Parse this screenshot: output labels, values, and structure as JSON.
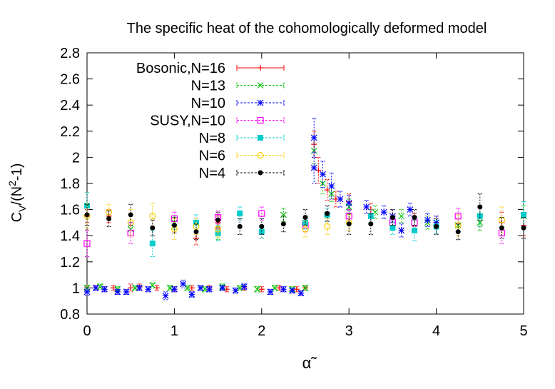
{
  "chart_data": {
    "type": "scatter",
    "title": "The specific heat of the cohomologically deformed model",
    "xlabel": "α̃",
    "ylabel_main": "C",
    "ylabel_sub": "V",
    "ylabel_rest": "/(N",
    "ylabel_sup": "2",
    "ylabel_end": "-1)",
    "xlim": [
      0,
      5
    ],
    "ylim": [
      0.8,
      2.8
    ],
    "xticks": [
      "0",
      "1",
      "2",
      "3",
      "4",
      "5"
    ],
    "yticks": [
      "0.8",
      "1",
      "1.2",
      "1.4",
      "1.6",
      "1.8",
      "2",
      "2.2",
      "2.4",
      "2.6",
      "2.8"
    ],
    "legend_position": "top-left",
    "series": [
      {
        "name": "Bosonic,N=16",
        "color": "#ff0000",
        "marker": "plus",
        "points": [
          [
            0,
            1.0,
            0.02
          ],
          [
            0.1,
            1.0,
            0.02
          ],
          [
            0.2,
            0.99,
            0.02
          ],
          [
            0.3,
            1.0,
            0.02
          ],
          [
            0.5,
            1.0,
            0.03
          ],
          [
            0.6,
            1.01,
            0.02
          ],
          [
            0.8,
            1.0,
            0.02
          ],
          [
            1.0,
            0.99,
            0.02
          ],
          [
            1.2,
            1.0,
            0.02
          ],
          [
            1.4,
            1.0,
            0.02
          ],
          [
            1.6,
            0.99,
            0.02
          ],
          [
            1.8,
            1.0,
            0.02
          ],
          [
            2.0,
            0.99,
            0.02
          ],
          [
            2.2,
            1.0,
            0.02
          ],
          [
            2.4,
            0.99,
            0.02
          ],
          [
            2.5,
            1.0,
            0.02
          ],
          [
            0,
            1.55,
            0.05
          ],
          [
            0.25,
            1.55,
            0.05
          ],
          [
            1.25,
            1.38,
            0.05
          ],
          [
            1.5,
            1.5,
            0.05
          ],
          [
            2.0,
            1.43,
            0.05
          ],
          [
            2.6,
            2.1,
            0.1
          ],
          [
            2.65,
            1.9,
            0.1
          ],
          [
            2.75,
            1.75,
            0.08
          ],
          [
            2.85,
            1.68,
            0.06
          ],
          [
            3.0,
            1.66,
            0.06
          ],
          [
            3.25,
            1.6,
            0.05
          ],
          [
            3.5,
            1.55,
            0.05
          ],
          [
            3.75,
            1.52,
            0.05
          ],
          [
            4.0,
            1.5,
            0.05
          ],
          [
            4.5,
            1.55,
            0.08
          ],
          [
            4.75,
            1.5,
            0.08
          ],
          [
            5.0,
            1.48,
            0.08
          ]
        ]
      },
      {
        "name": "N=13",
        "color": "#00c000",
        "marker": "cross",
        "points": [
          [
            0,
            1.0,
            0.02
          ],
          [
            0.15,
            1.01,
            0.02
          ],
          [
            0.35,
            0.99,
            0.02
          ],
          [
            0.55,
            1.0,
            0.02
          ],
          [
            0.75,
            1.02,
            0.02
          ],
          [
            0.95,
            1.0,
            0.02
          ],
          [
            1.15,
            1.0,
            0.02
          ],
          [
            1.35,
            0.99,
            0.02
          ],
          [
            1.55,
            1.01,
            0.02
          ],
          [
            1.75,
            1.0,
            0.02
          ],
          [
            1.95,
            0.99,
            0.02
          ],
          [
            2.15,
            1.0,
            0.02
          ],
          [
            2.35,
            0.99,
            0.02
          ],
          [
            2.5,
            1.0,
            0.02
          ],
          [
            0.5,
            1.45,
            0.05
          ],
          [
            1.0,
            1.5,
            0.05
          ],
          [
            1.5,
            1.42,
            0.05
          ],
          [
            2.25,
            1.56,
            0.05
          ],
          [
            2.6,
            2.05,
            0.1
          ],
          [
            2.7,
            1.8,
            0.08
          ],
          [
            2.8,
            1.72,
            0.06
          ],
          [
            3.0,
            1.62,
            0.06
          ],
          [
            3.3,
            1.58,
            0.05
          ],
          [
            3.6,
            1.55,
            0.05
          ],
          [
            3.9,
            1.5,
            0.05
          ],
          [
            4.25,
            1.48,
            0.05
          ],
          [
            4.5,
            1.5,
            0.06
          ],
          [
            5.0,
            1.55,
            0.08
          ]
        ]
      },
      {
        "name": "N=10",
        "color": "#0000ff",
        "marker": "star",
        "points": [
          [
            0,
            0.97,
            0.03
          ],
          [
            0.1,
            1.0,
            0.02
          ],
          [
            0.2,
            0.99,
            0.02
          ],
          [
            0.35,
            0.97,
            0.02
          ],
          [
            0.45,
            0.97,
            0.02
          ],
          [
            0.6,
            1.0,
            0.02
          ],
          [
            0.7,
            0.99,
            0.02
          ],
          [
            0.9,
            0.94,
            0.03
          ],
          [
            1.0,
            0.99,
            0.02
          ],
          [
            1.1,
            1.03,
            0.03
          ],
          [
            1.2,
            0.95,
            0.02
          ],
          [
            1.3,
            1.0,
            0.02
          ],
          [
            1.4,
            0.99,
            0.02
          ],
          [
            1.55,
            1.0,
            0.02
          ],
          [
            1.7,
            0.98,
            0.02
          ],
          [
            1.8,
            1.01,
            0.02
          ],
          [
            2.1,
            0.97,
            0.02
          ],
          [
            2.25,
            0.99,
            0.02
          ],
          [
            2.35,
            0.98,
            0.02
          ],
          [
            2.45,
            0.96,
            0.02
          ],
          [
            2.6,
            1.92,
            0.12
          ],
          [
            2.6,
            2.15,
            0.15
          ],
          [
            2.7,
            1.87,
            0.1
          ],
          [
            2.8,
            1.78,
            0.1
          ],
          [
            2.9,
            1.68,
            0.06
          ],
          [
            3.0,
            1.65,
            0.06
          ],
          [
            3.2,
            1.62,
            0.05
          ],
          [
            3.4,
            1.58,
            0.05
          ],
          [
            3.5,
            1.55,
            0.05
          ],
          [
            3.6,
            1.44,
            0.05
          ],
          [
            3.7,
            1.6,
            0.05
          ],
          [
            3.9,
            1.52,
            0.05
          ],
          [
            4.0,
            1.5,
            0.05
          ]
        ]
      },
      {
        "name": "SUSY,N=10",
        "color": "#ff00ff",
        "marker": "square",
        "points": [
          [
            0,
            1.34,
            0.1
          ],
          [
            0.5,
            1.42,
            0.08
          ],
          [
            1.0,
            1.53,
            0.05
          ],
          [
            1.5,
            1.54,
            0.05
          ],
          [
            2.0,
            1.57,
            0.05
          ],
          [
            2.5,
            1.48,
            0.05
          ],
          [
            3.0,
            1.55,
            0.05
          ],
          [
            3.5,
            1.5,
            0.05
          ],
          [
            3.75,
            1.5,
            0.05
          ],
          [
            4.25,
            1.55,
            0.06
          ],
          [
            4.75,
            1.42,
            0.08
          ]
        ]
      },
      {
        "name": "N=8",
        "color": "#00cccc",
        "marker": "filled-square",
        "points": [
          [
            0,
            1.63,
            0.1
          ],
          [
            0.75,
            1.34,
            0.1
          ],
          [
            1.25,
            1.5,
            0.06
          ],
          [
            1.5,
            1.42,
            0.06
          ],
          [
            1.75,
            1.57,
            0.05
          ],
          [
            2.0,
            1.43,
            0.05
          ],
          [
            2.5,
            1.5,
            0.05
          ],
          [
            2.75,
            1.56,
            0.05
          ],
          [
            3.25,
            1.55,
            0.05
          ],
          [
            3.5,
            1.46,
            0.05
          ],
          [
            3.75,
            1.44,
            0.08
          ],
          [
            4.0,
            1.47,
            0.05
          ],
          [
            4.5,
            1.55,
            0.08
          ],
          [
            5.0,
            1.56,
            0.1
          ]
        ]
      },
      {
        "name": "N=6",
        "color": "#ffcc00",
        "marker": "circle",
        "points": [
          [
            0,
            1.55,
            0.1
          ],
          [
            0.25,
            1.58,
            0.06
          ],
          [
            0.5,
            1.5,
            0.1
          ],
          [
            0.75,
            1.55,
            0.1
          ],
          [
            1.0,
            1.45,
            0.08
          ],
          [
            1.25,
            1.47,
            0.06
          ],
          [
            1.5,
            1.45,
            0.06
          ],
          [
            2.5,
            1.45,
            0.06
          ],
          [
            2.75,
            1.47,
            0.06
          ],
          [
            3.0,
            1.5,
            0.06
          ],
          [
            4.25,
            1.48,
            0.08
          ],
          [
            4.75,
            1.52,
            0.1
          ]
        ]
      },
      {
        "name": "N=4",
        "color": "#000000",
        "marker": "dot",
        "points": [
          [
            0,
            1.56,
            0.08
          ],
          [
            0.25,
            1.53,
            0.06
          ],
          [
            0.5,
            1.56,
            0.08
          ],
          [
            0.75,
            1.46,
            0.06
          ],
          [
            1.0,
            1.48,
            0.06
          ],
          [
            1.25,
            1.43,
            0.06
          ],
          [
            1.5,
            1.52,
            0.06
          ],
          [
            1.75,
            1.47,
            0.06
          ],
          [
            2.0,
            1.47,
            0.06
          ],
          [
            2.25,
            1.49,
            0.06
          ],
          [
            2.5,
            1.54,
            0.06
          ],
          [
            2.75,
            1.57,
            0.06
          ],
          [
            3.0,
            1.49,
            0.08
          ],
          [
            3.25,
            1.49,
            0.08
          ],
          [
            3.5,
            1.54,
            0.06
          ],
          [
            3.75,
            1.54,
            0.06
          ],
          [
            4.0,
            1.47,
            0.06
          ],
          [
            4.25,
            1.43,
            0.06
          ],
          [
            4.5,
            1.62,
            0.1
          ],
          [
            4.75,
            1.46,
            0.08
          ],
          [
            5.0,
            1.46,
            0.08
          ]
        ]
      }
    ]
  }
}
